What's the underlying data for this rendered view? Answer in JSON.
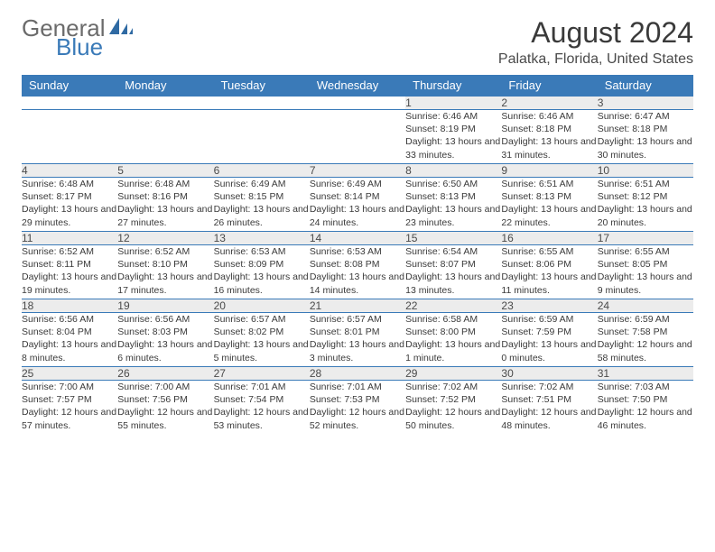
{
  "logo": {
    "text1": "General",
    "text2": "Blue"
  },
  "header": {
    "month": "August 2024",
    "location": "Palatka, Florida, United States"
  },
  "colors": {
    "header_bg": "#3a7ab8",
    "header_text": "#ffffff",
    "daynum_bg": "#ececec",
    "rule": "#3a7ab8",
    "logo_gray": "#6b6b6b",
    "logo_blue": "#3a7ab8"
  },
  "day_headers": [
    "Sunday",
    "Monday",
    "Tuesday",
    "Wednesday",
    "Thursday",
    "Friday",
    "Saturday"
  ],
  "weeks": [
    [
      null,
      null,
      null,
      null,
      {
        "n": "1",
        "sr": "Sunrise: 6:46 AM",
        "ss": "Sunset: 8:19 PM",
        "dl": "Daylight: 13 hours and 33 minutes."
      },
      {
        "n": "2",
        "sr": "Sunrise: 6:46 AM",
        "ss": "Sunset: 8:18 PM",
        "dl": "Daylight: 13 hours and 31 minutes."
      },
      {
        "n": "3",
        "sr": "Sunrise: 6:47 AM",
        "ss": "Sunset: 8:18 PM",
        "dl": "Daylight: 13 hours and 30 minutes."
      }
    ],
    [
      {
        "n": "4",
        "sr": "Sunrise: 6:48 AM",
        "ss": "Sunset: 8:17 PM",
        "dl": "Daylight: 13 hours and 29 minutes."
      },
      {
        "n": "5",
        "sr": "Sunrise: 6:48 AM",
        "ss": "Sunset: 8:16 PM",
        "dl": "Daylight: 13 hours and 27 minutes."
      },
      {
        "n": "6",
        "sr": "Sunrise: 6:49 AM",
        "ss": "Sunset: 8:15 PM",
        "dl": "Daylight: 13 hours and 26 minutes."
      },
      {
        "n": "7",
        "sr": "Sunrise: 6:49 AM",
        "ss": "Sunset: 8:14 PM",
        "dl": "Daylight: 13 hours and 24 minutes."
      },
      {
        "n": "8",
        "sr": "Sunrise: 6:50 AM",
        "ss": "Sunset: 8:13 PM",
        "dl": "Daylight: 13 hours and 23 minutes."
      },
      {
        "n": "9",
        "sr": "Sunrise: 6:51 AM",
        "ss": "Sunset: 8:13 PM",
        "dl": "Daylight: 13 hours and 22 minutes."
      },
      {
        "n": "10",
        "sr": "Sunrise: 6:51 AM",
        "ss": "Sunset: 8:12 PM",
        "dl": "Daylight: 13 hours and 20 minutes."
      }
    ],
    [
      {
        "n": "11",
        "sr": "Sunrise: 6:52 AM",
        "ss": "Sunset: 8:11 PM",
        "dl": "Daylight: 13 hours and 19 minutes."
      },
      {
        "n": "12",
        "sr": "Sunrise: 6:52 AM",
        "ss": "Sunset: 8:10 PM",
        "dl": "Daylight: 13 hours and 17 minutes."
      },
      {
        "n": "13",
        "sr": "Sunrise: 6:53 AM",
        "ss": "Sunset: 8:09 PM",
        "dl": "Daylight: 13 hours and 16 minutes."
      },
      {
        "n": "14",
        "sr": "Sunrise: 6:53 AM",
        "ss": "Sunset: 8:08 PM",
        "dl": "Daylight: 13 hours and 14 minutes."
      },
      {
        "n": "15",
        "sr": "Sunrise: 6:54 AM",
        "ss": "Sunset: 8:07 PM",
        "dl": "Daylight: 13 hours and 13 minutes."
      },
      {
        "n": "16",
        "sr": "Sunrise: 6:55 AM",
        "ss": "Sunset: 8:06 PM",
        "dl": "Daylight: 13 hours and 11 minutes."
      },
      {
        "n": "17",
        "sr": "Sunrise: 6:55 AM",
        "ss": "Sunset: 8:05 PM",
        "dl": "Daylight: 13 hours and 9 minutes."
      }
    ],
    [
      {
        "n": "18",
        "sr": "Sunrise: 6:56 AM",
        "ss": "Sunset: 8:04 PM",
        "dl": "Daylight: 13 hours and 8 minutes."
      },
      {
        "n": "19",
        "sr": "Sunrise: 6:56 AM",
        "ss": "Sunset: 8:03 PM",
        "dl": "Daylight: 13 hours and 6 minutes."
      },
      {
        "n": "20",
        "sr": "Sunrise: 6:57 AM",
        "ss": "Sunset: 8:02 PM",
        "dl": "Daylight: 13 hours and 5 minutes."
      },
      {
        "n": "21",
        "sr": "Sunrise: 6:57 AM",
        "ss": "Sunset: 8:01 PM",
        "dl": "Daylight: 13 hours and 3 minutes."
      },
      {
        "n": "22",
        "sr": "Sunrise: 6:58 AM",
        "ss": "Sunset: 8:00 PM",
        "dl": "Daylight: 13 hours and 1 minute."
      },
      {
        "n": "23",
        "sr": "Sunrise: 6:59 AM",
        "ss": "Sunset: 7:59 PM",
        "dl": "Daylight: 13 hours and 0 minutes."
      },
      {
        "n": "24",
        "sr": "Sunrise: 6:59 AM",
        "ss": "Sunset: 7:58 PM",
        "dl": "Daylight: 12 hours and 58 minutes."
      }
    ],
    [
      {
        "n": "25",
        "sr": "Sunrise: 7:00 AM",
        "ss": "Sunset: 7:57 PM",
        "dl": "Daylight: 12 hours and 57 minutes."
      },
      {
        "n": "26",
        "sr": "Sunrise: 7:00 AM",
        "ss": "Sunset: 7:56 PM",
        "dl": "Daylight: 12 hours and 55 minutes."
      },
      {
        "n": "27",
        "sr": "Sunrise: 7:01 AM",
        "ss": "Sunset: 7:54 PM",
        "dl": "Daylight: 12 hours and 53 minutes."
      },
      {
        "n": "28",
        "sr": "Sunrise: 7:01 AM",
        "ss": "Sunset: 7:53 PM",
        "dl": "Daylight: 12 hours and 52 minutes."
      },
      {
        "n": "29",
        "sr": "Sunrise: 7:02 AM",
        "ss": "Sunset: 7:52 PM",
        "dl": "Daylight: 12 hours and 50 minutes."
      },
      {
        "n": "30",
        "sr": "Sunrise: 7:02 AM",
        "ss": "Sunset: 7:51 PM",
        "dl": "Daylight: 12 hours and 48 minutes."
      },
      {
        "n": "31",
        "sr": "Sunrise: 7:03 AM",
        "ss": "Sunset: 7:50 PM",
        "dl": "Daylight: 12 hours and 46 minutes."
      }
    ]
  ]
}
